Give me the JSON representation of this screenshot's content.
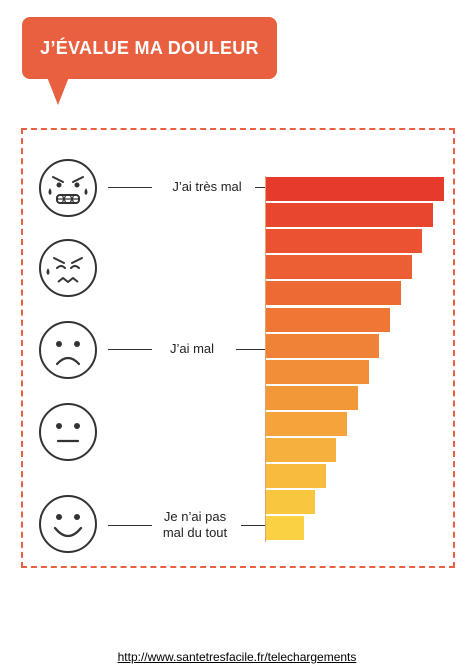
{
  "title": "J’ÉVALUE MA DOULEUR",
  "labels": {
    "high": "J’ai très mal",
    "mid": "J’ai mal",
    "low_line1": "Je n’ai pas",
    "low_line2": "mal du tout"
  },
  "faces": [
    {
      "name": "grimacing-crying-face-icon",
      "level": "très mal"
    },
    {
      "name": "wincing-sweat-face-icon",
      "level": ""
    },
    {
      "name": "sad-face-icon",
      "level": "mal"
    },
    {
      "name": "neutral-face-icon",
      "level": ""
    },
    {
      "name": "smiling-face-icon",
      "level": "pas mal du tout"
    }
  ],
  "scale": {
    "steps": 14,
    "colors": [
      "#e63a2d",
      "#e8462f",
      "#ea5232",
      "#ec5e33",
      "#ed6a34",
      "#ef7635",
      "#f08237",
      "#f28d38",
      "#f39839",
      "#f5a43b",
      "#f6b03d",
      "#f7bb3e",
      "#f9c640",
      "#fad142"
    ]
  },
  "footer": {
    "link_text": "http://www.santetresfacile.fr/telechargements"
  },
  "colors": {
    "accent": "#e8603f",
    "face_stroke": "#333333"
  }
}
